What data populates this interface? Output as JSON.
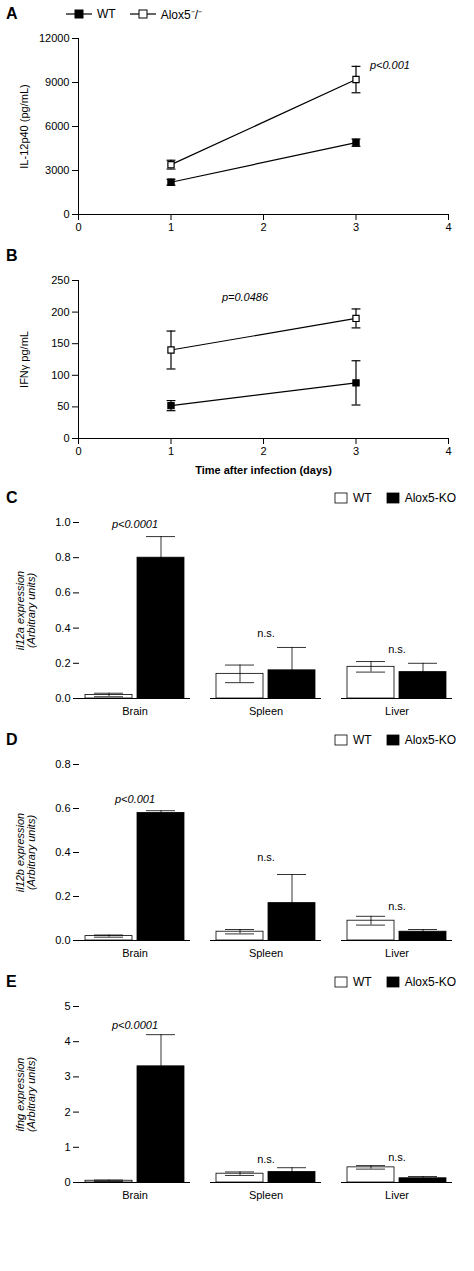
{
  "chart_data": [
    {
      "type": "line",
      "title": "A",
      "y_label": "IL-12p40 (pg/mL)",
      "x": [
        1,
        3
      ],
      "series": [
        {
          "name": "WT",
          "color": "black",
          "marker": "square",
          "values": [
            2200,
            4900
          ],
          "errors": [
            200,
            250
          ]
        },
        {
          "name": "Alox5⁻/⁻",
          "color": "black",
          "marker": "square-open",
          "values": [
            3400,
            9200
          ],
          "errors": [
            300,
            900
          ]
        }
      ],
      "xlim": [
        0,
        4
      ],
      "xticks": [
        0,
        1,
        2,
        3,
        4
      ],
      "ylim": [
        0,
        12000
      ],
      "yticks": [
        0,
        3000,
        6000,
        9000,
        12000
      ],
      "legend": "upper left",
      "annotations": [
        {
          "text": "p<0.001",
          "x": 3.15,
          "y": 9900
        }
      ]
    },
    {
      "type": "line",
      "title": "B",
      "y_label": "IFNγ pg/mL",
      "x_label": "Time after infection (days)",
      "x": [
        1,
        3
      ],
      "series": [
        {
          "name": "WT",
          "color": "black",
          "marker": "square",
          "values": [
            52,
            88
          ],
          "errors": [
            8,
            35
          ]
        },
        {
          "name": "Alox5⁻/⁻",
          "color": "black",
          "marker": "square-open",
          "values": [
            140,
            190
          ],
          "errors": [
            30,
            15
          ]
        }
      ],
      "xlim": [
        0,
        4
      ],
      "xticks": [
        0,
        1,
        2,
        3,
        4
      ],
      "ylim": [
        0,
        250
      ],
      "yticks": [
        0,
        50,
        100,
        150,
        200,
        250
      ],
      "legend": false,
      "annotations": [
        {
          "text": "p=0.0486",
          "x": 1.55,
          "y": 218
        }
      ]
    },
    {
      "type": "bar",
      "title": "C",
      "y_label": "il12a expression\n(Arbitrary units)",
      "categories": [
        "Brain",
        "Spleen",
        "Liver"
      ],
      "series": [
        {
          "name": "WT",
          "color": "white",
          "values": [
            0.02,
            0.14,
            0.18
          ],
          "errors": [
            0.01,
            0.05,
            0.03
          ]
        },
        {
          "name": "Alox5-KO",
          "color": "black",
          "values": [
            0.8,
            0.16,
            0.15
          ],
          "errors": [
            0.12,
            0.13,
            0.05
          ]
        }
      ],
      "ylim": [
        0,
        1.0
      ],
      "yticks": [
        {
          "value": 0,
          "label": "0.0"
        },
        0.2,
        0.4,
        0.6,
        0.8,
        {
          "value": 1,
          "label": "1.0"
        }
      ],
      "legend": "upper right",
      "annotations": [
        {
          "text": "p<0.0001",
          "category": "Brain",
          "y": 0.97
        },
        {
          "text": "n.s.",
          "category": "Spleen",
          "y": 0.35
        },
        {
          "text": "n.s.",
          "category": "Liver",
          "y": 0.26
        }
      ]
    },
    {
      "type": "bar",
      "title": "D",
      "y_label": "il12b expression\n(Arbitrary units)",
      "categories": [
        "Brain",
        "Spleen",
        "Liver"
      ],
      "series": [
        {
          "name": "WT",
          "color": "white",
          "values": [
            0.02,
            0.04,
            0.09
          ],
          "errors": [
            0.005,
            0.01,
            0.02
          ]
        },
        {
          "name": "Alox5-KO",
          "color": "black",
          "values": [
            0.58,
            0.17,
            0.04
          ],
          "errors": [
            0.01,
            0.13,
            0.01
          ]
        }
      ],
      "ylim": [
        0,
        0.8
      ],
      "yticks": [
        {
          "value": 0,
          "label": "0.0"
        },
        0.2,
        0.4,
        0.6,
        0.8
      ],
      "legend": "upper right",
      "annotations": [
        {
          "text": "p<0.001",
          "category": "Brain",
          "y": 0.625
        },
        {
          "text": "n.s.",
          "category": "Spleen",
          "y": 0.36
        },
        {
          "text": "n.s.",
          "category": "Liver",
          "y": 0.14
        }
      ]
    },
    {
      "type": "bar",
      "title": "E",
      "y_label": "ifng expression\n(Arbitrary units)",
      "categories": [
        "Brain",
        "Spleen",
        "Liver"
      ],
      "series": [
        {
          "name": "WT",
          "color": "white",
          "values": [
            0.05,
            0.25,
            0.43
          ],
          "errors": [
            0.02,
            0.05,
            0.05
          ]
        },
        {
          "name": "Alox5-KO",
          "color": "black",
          "values": [
            3.3,
            0.3,
            0.12
          ],
          "errors": [
            0.9,
            0.12,
            0.05
          ]
        }
      ],
      "ylim": [
        0,
        5
      ],
      "yticks": [
        0,
        1,
        2,
        3,
        4,
        5
      ],
      "legend": "upper right",
      "annotations": [
        {
          "text": "p<0.0001",
          "category": "Brain",
          "y": 4.35
        },
        {
          "text": "n.s.",
          "category": "Spleen",
          "y": 0.55
        },
        {
          "text": "n.s.",
          "category": "Liver",
          "y": 0.62
        }
      ]
    }
  ]
}
